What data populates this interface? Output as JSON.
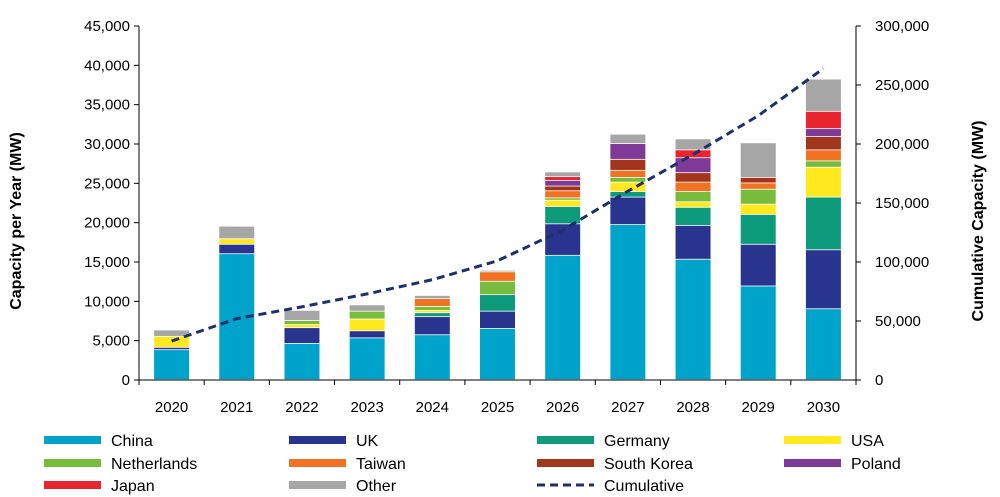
{
  "chart_data": {
    "type": "bar",
    "stacked": true,
    "categories": [
      "2020",
      "2021",
      "2022",
      "2023",
      "2024",
      "2025",
      "2026",
      "2027",
      "2028",
      "2029",
      "2030"
    ],
    "ylabel": "Capacity per Year (MW)",
    "y2label": "Cumulative Capacity (MW)",
    "ylim": [
      0,
      45000
    ],
    "y2lim": [
      0,
      300000
    ],
    "yticks": [
      "0",
      "5,000",
      "10,000",
      "15,000",
      "20,000",
      "25,000",
      "30,000",
      "35,000",
      "40,000",
      "45,000"
    ],
    "y2ticks": [
      "0",
      "50,000",
      "100,000",
      "150,000",
      "200,000",
      "250,000",
      "300,000"
    ],
    "grid": false,
    "legend_position": "bottom",
    "series": [
      {
        "name": "China",
        "color": "#00a3c9",
        "values": [
          3800,
          16000,
          4600,
          5300,
          5700,
          6500,
          15800,
          19700,
          15300,
          11900,
          9000
        ]
      },
      {
        "name": "UK",
        "color": "#28348d",
        "values": [
          300,
          1200,
          2000,
          900,
          2300,
          2200,
          4000,
          3500,
          4300,
          5300,
          7500
        ]
      },
      {
        "name": "Germany",
        "color": "#0d9b7c",
        "values": [
          0,
          0,
          0,
          0,
          500,
          2100,
          2200,
          700,
          2300,
          3800,
          6700
        ]
      },
      {
        "name": "USA",
        "color": "#ffe81e",
        "values": [
          1400,
          700,
          400,
          1500,
          300,
          0,
          800,
          1200,
          700,
          1300,
          3800
        ]
      },
      {
        "name": "Netherlands",
        "color": "#78bc3d",
        "values": [
          0,
          0,
          500,
          1000,
          500,
          1700,
          300,
          600,
          1300,
          1900,
          800
        ]
      },
      {
        "name": "Taiwan",
        "color": "#f07222",
        "values": [
          0,
          0,
          0,
          0,
          1000,
          1200,
          900,
          900,
          1200,
          800,
          1400
        ]
      },
      {
        "name": "South Korea",
        "color": "#a2361d",
        "values": [
          0,
          0,
          0,
          0,
          0,
          0,
          600,
          1400,
          1200,
          700,
          1700
        ]
      },
      {
        "name": "Poland",
        "color": "#7f3a97",
        "values": [
          0,
          0,
          0,
          0,
          0,
          0,
          700,
          2000,
          1900,
          0,
          1000
        ]
      },
      {
        "name": "Japan",
        "color": "#e8242e",
        "values": [
          0,
          0,
          0,
          0,
          0,
          0,
          500,
          0,
          1000,
          0,
          2200
        ]
      },
      {
        "name": "Other",
        "color": "#a6a6a6",
        "values": [
          800,
          1600,
          1300,
          800,
          400,
          200,
          600,
          1200,
          1400,
          4400,
          4100
        ]
      }
    ],
    "line_series": {
      "name": "Cumulative",
      "color": "#1e2f6b",
      "style": "dashed",
      "axis": "right",
      "values": [
        33000,
        52000,
        62000,
        73000,
        85000,
        101000,
        127000,
        160000,
        191000,
        224000,
        264000
      ]
    }
  }
}
